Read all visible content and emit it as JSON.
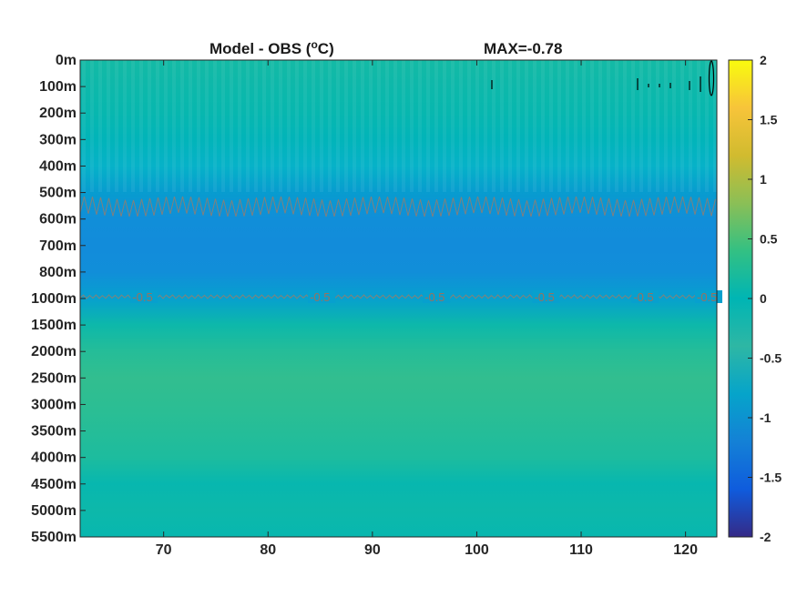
{
  "chart_data": {
    "type": "heatmap",
    "title_left": "Model - OBS (",
    "title_unit_sup": "o",
    "title_unit_rest": "C)",
    "title_right": "MAX=-0.78",
    "x_ticks": [
      70,
      80,
      90,
      100,
      110,
      120
    ],
    "xlim": [
      62,
      123
    ],
    "y_ticks": [
      "0m",
      "100m",
      "200m",
      "300m",
      "400m",
      "500m",
      "600m",
      "700m",
      "800m",
      "1000m",
      "1500m",
      "2000m",
      "2500m",
      "3000m",
      "3500m",
      "4000m",
      "4500m",
      "5000m",
      "5500m"
    ],
    "colorbar": {
      "min": -2,
      "max": 2,
      "ticks": [
        2,
        1.5,
        1,
        0.5,
        0,
        -0.5,
        -1,
        -1.5,
        -2
      ],
      "colormap": "parula"
    },
    "depth_profile": [
      {
        "depth": "0m",
        "value": 0.15
      },
      {
        "depth": "100m",
        "value": 0.1
      },
      {
        "depth": "200m",
        "value": 0.05
      },
      {
        "depth": "300m",
        "value": -0.05
      },
      {
        "depth": "400m",
        "value": -0.2
      },
      {
        "depth": "500m",
        "value": -0.5
      },
      {
        "depth": "600m",
        "value": -0.72
      },
      {
        "depth": "700m",
        "value": -0.75
      },
      {
        "depth": "800m",
        "value": -0.72
      },
      {
        "depth": "1000m",
        "value": -0.45
      },
      {
        "depth": "1500m",
        "value": 0.1
      },
      {
        "depth": "2000m",
        "value": 0.28
      },
      {
        "depth": "2500m",
        "value": 0.35
      },
      {
        "depth": "3000m",
        "value": 0.32
      },
      {
        "depth": "3500m",
        "value": 0.28
      },
      {
        "depth": "4000m",
        "value": 0.22
      },
      {
        "depth": "4500m",
        "value": 0.05
      },
      {
        "depth": "5000m",
        "value": 0.1
      },
      {
        "depth": "5500m",
        "value": 0.05
      }
    ],
    "contour_labels": [
      "-0.5",
      "-0.5",
      "-0.5",
      "-0.5",
      "-0.5",
      "-0.5"
    ],
    "contour_label_x": [
      67,
      84,
      95,
      105.5,
      115,
      124
    ]
  }
}
